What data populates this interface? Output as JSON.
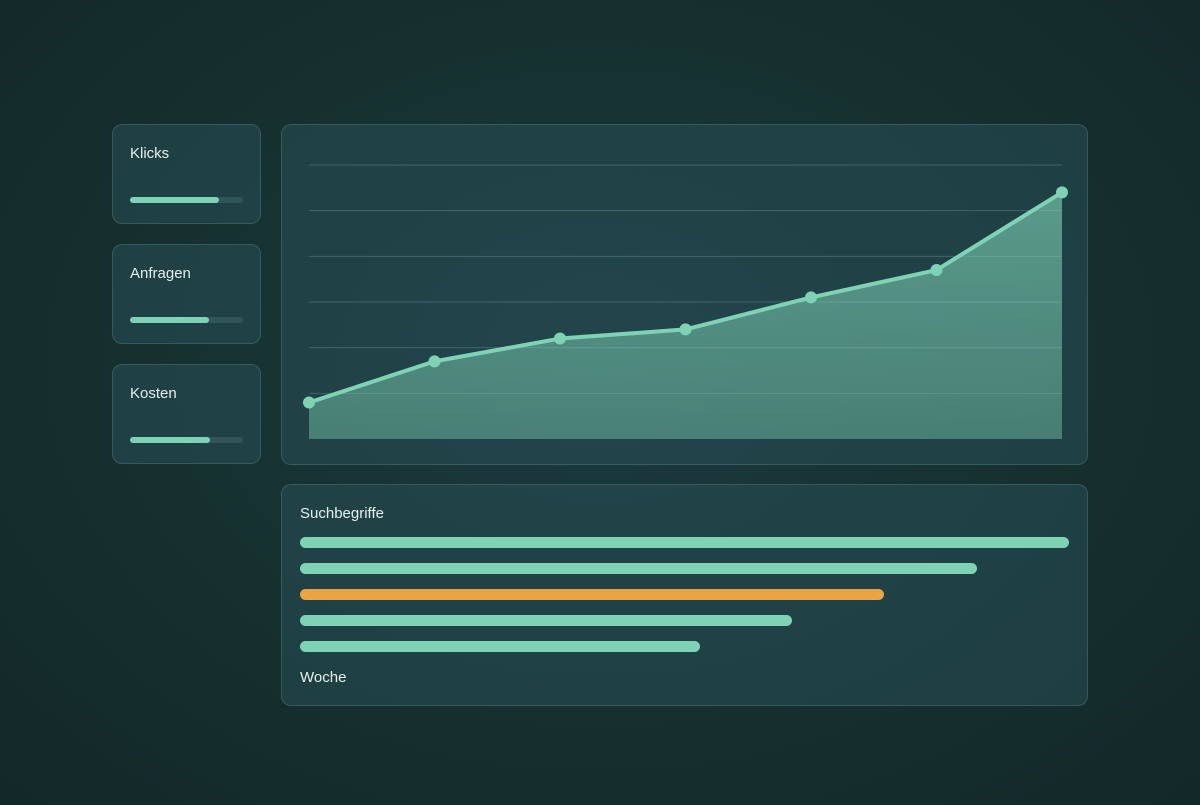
{
  "kpis": [
    {
      "label": "Klicks",
      "progress": 0.79
    },
    {
      "label": "Anfragen",
      "progress": 0.7
    },
    {
      "label": "Kosten",
      "progress": 0.71
    }
  ],
  "colors": {
    "accent": "#7fd3b5",
    "highlight": "#e9a443"
  },
  "chart_data": {
    "type": "area",
    "title": "",
    "xlabel": "",
    "ylabel": "",
    "ylim": [
      0,
      6
    ],
    "grid": true,
    "x": [
      1,
      2,
      3,
      4,
      5,
      6,
      7
    ],
    "values": [
      0.8,
      1.7,
      2.2,
      2.4,
      3.1,
      3.7,
      5.4
    ]
  },
  "search_terms": {
    "title": "Suchbegriffe",
    "footer": "Woche",
    "bars": [
      {
        "value": 1.0,
        "highlight": false
      },
      {
        "value": 0.88,
        "highlight": false
      },
      {
        "value": 0.76,
        "highlight": true
      },
      {
        "value": 0.64,
        "highlight": false
      },
      {
        "value": 0.52,
        "highlight": false
      }
    ]
  }
}
